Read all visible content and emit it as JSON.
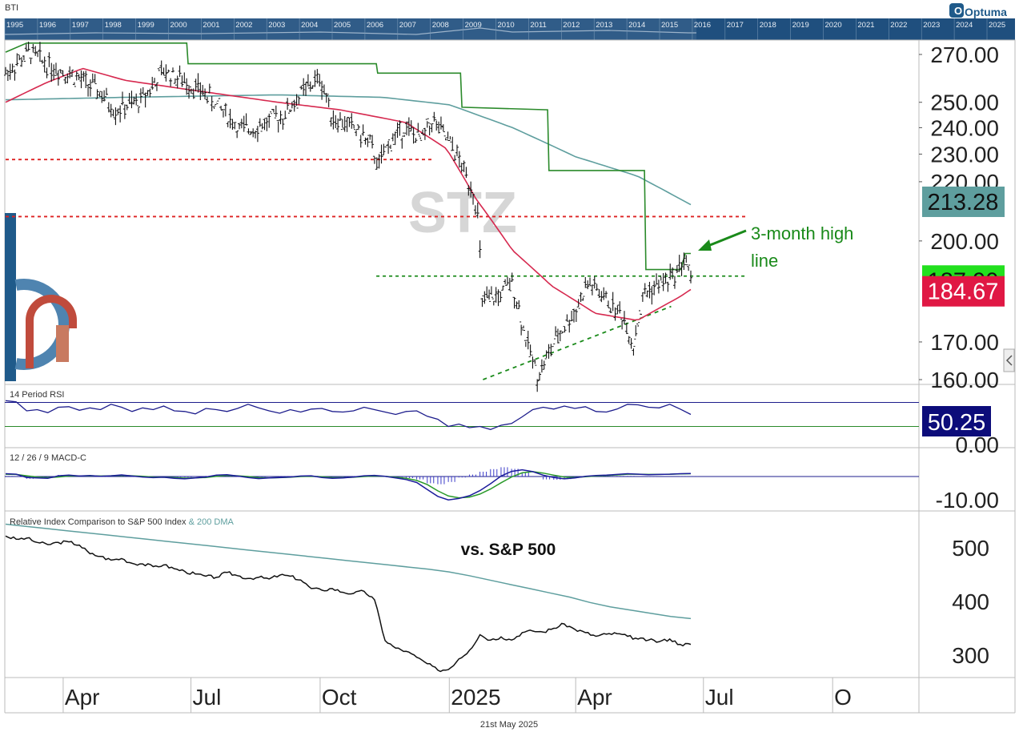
{
  "ticker_code": "BTI",
  "watermark": "STZ",
  "brand": "Optuma",
  "date_footer": "21st May 2025",
  "timeline_years": [
    "1995",
    "1996",
    "1997",
    "1998",
    "1999",
    "2000",
    "2001",
    "2002",
    "2003",
    "2004",
    "2005",
    "2006",
    "2007",
    "2008",
    "2009",
    "2010",
    "2011",
    "2012",
    "2013",
    "2014",
    "2015",
    "2016",
    "2017",
    "2018",
    "2019",
    "2020",
    "2021",
    "2022",
    "2023",
    "2024",
    "2025"
  ],
  "annotation": {
    "line1": "3-month high",
    "line2": "line"
  },
  "x_ticks": [
    "Apr",
    "Jul",
    "Oct",
    "2025",
    "Apr",
    "Jul",
    "O"
  ],
  "colors": {
    "bar": "#111111",
    "ma50": "#d6294f",
    "ma200": "#5e9e9e",
    "high_line": "#2a8a2a",
    "support": "#1a8a1a",
    "resistance": "#dd2222",
    "rsi": "#1c1c8c",
    "macd": "#1c1c9c",
    "signal": "#2a9a2a",
    "histogram": "#3a3ac8",
    "relative": "#111111",
    "rel_ma": "#5e9e9e",
    "brand_blue": "#1f5a8a"
  },
  "chart_data": [
    {
      "type": "candlestick",
      "title": "",
      "y_ticks": [
        "270.00",
        "250.00",
        "240.00",
        "230.00",
        "220.00",
        "200.00",
        "170.00",
        "160.00"
      ],
      "ylim": [
        160,
        276
      ],
      "y_scale": "log",
      "price_labels": [
        {
          "label": "213.28",
          "value": 213.28,
          "color": "#5e9e9e",
          "text_color": "#111111"
        },
        {
          "label": "187.90",
          "value": 187.9,
          "color": "#22e01e",
          "text_color": "#111111"
        },
        {
          "label": "184.67",
          "value": 184.67,
          "color": "#e01844",
          "text_color": "#ffffff"
        }
      ],
      "horizontal_levels": [
        {
          "name": "",
          "value": 228,
          "from": "2024-02-20",
          "to": "2024-12-20",
          "color": "#dd2222",
          "style": "dotted"
        },
        {
          "name": "",
          "value": 208,
          "from": "2024-02-20",
          "to": "2025-07-31",
          "color": "#dd2222",
          "style": "dotted"
        },
        {
          "name": "",
          "value": 189,
          "from": "2024-11-10",
          "to": "2025-07-31",
          "color": "#1a8a1a",
          "style": "dotted"
        }
      ],
      "trendline": {
        "from": [
          "2025-01-25",
          160
        ],
        "to": [
          "2025-06-08",
          180
        ],
        "color": "#1a8a1a",
        "style": "dotted"
      },
      "series_anchor": {
        "price": [
          [
            "2024-02-20",
            262
          ],
          [
            "2024-03-08",
            271
          ],
          [
            "2024-03-20",
            266
          ],
          [
            "2024-04-05",
            262
          ],
          [
            "2024-04-25",
            255
          ],
          [
            "2024-05-08",
            247
          ],
          [
            "2024-05-25",
            250
          ],
          [
            "2024-06-12",
            263
          ],
          [
            "2024-06-28",
            258
          ],
          [
            "2024-07-10",
            254
          ],
          [
            "2024-07-25",
            246
          ],
          [
            "2024-08-05",
            239
          ],
          [
            "2024-08-20",
            241
          ],
          [
            "2024-09-05",
            245
          ],
          [
            "2024-09-20",
            255
          ],
          [
            "2024-10-01",
            260
          ],
          [
            "2024-10-10",
            244
          ],
          [
            "2024-10-25",
            240
          ],
          [
            "2024-11-05",
            234
          ],
          [
            "2024-11-12",
            226
          ],
          [
            "2024-11-20",
            235
          ],
          [
            "2024-12-01",
            240
          ],
          [
            "2024-12-12",
            235
          ],
          [
            "2024-12-20",
            243
          ],
          [
            "2025-01-05",
            231
          ],
          [
            "2025-01-13",
            222
          ],
          [
            "2025-01-18",
            217
          ],
          [
            "2025-01-22",
            206
          ],
          [
            "2025-01-24",
            181
          ],
          [
            "2025-02-05",
            183
          ],
          [
            "2025-02-15",
            187
          ],
          [
            "2025-02-25",
            170
          ],
          [
            "2025-03-05",
            161
          ],
          [
            "2025-03-20",
            172
          ],
          [
            "2025-04-01",
            179
          ],
          [
            "2025-04-10",
            187
          ],
          [
            "2025-04-25",
            181
          ],
          [
            "2025-05-05",
            177
          ],
          [
            "2025-05-12",
            169
          ],
          [
            "2025-05-20",
            184
          ],
          [
            "2025-06-01",
            187
          ],
          [
            "2025-06-10",
            189
          ],
          [
            "2025-06-18",
            195
          ],
          [
            "2025-06-22",
            187
          ]
        ],
        "ma50": [
          [
            "2024-02-20",
            250
          ],
          [
            "2024-03-20",
            258
          ],
          [
            "2024-04-15",
            264
          ],
          [
            "2024-05-15",
            259
          ],
          [
            "2024-07-01",
            255
          ],
          [
            "2024-09-01",
            250
          ],
          [
            "2024-10-15",
            247
          ],
          [
            "2024-12-01",
            242
          ],
          [
            "2024-12-30",
            232
          ],
          [
            "2025-01-20",
            214
          ],
          [
            "2025-02-15",
            197
          ],
          [
            "2025-03-15",
            186
          ],
          [
            "2025-04-15",
            178
          ],
          [
            "2025-05-15",
            176
          ],
          [
            "2025-06-15",
            183
          ],
          [
            "2025-06-22",
            185
          ]
        ],
        "ma200": [
          [
            "2024-02-20",
            251
          ],
          [
            "2024-05-15",
            252
          ],
          [
            "2024-09-01",
            253
          ],
          [
            "2024-11-15",
            252
          ],
          [
            "2025-01-01",
            249
          ],
          [
            "2025-02-15",
            240
          ],
          [
            "2025-04-01",
            229
          ],
          [
            "2025-05-15",
            222
          ],
          [
            "2025-06-22",
            212
          ]
        ],
        "high_line": [
          [
            "2024-02-20",
            271
          ],
          [
            "2024-03-06",
            275
          ],
          [
            "2024-06-28",
            275
          ],
          [
            "2024-06-29",
            266
          ],
          [
            "2024-11-10",
            266
          ],
          [
            "2024-11-11",
            262
          ],
          [
            "2025-01-09",
            262
          ],
          [
            "2025-01-10",
            248
          ],
          [
            "2025-03-12",
            247
          ],
          [
            "2025-03-13",
            224
          ],
          [
            "2025-05-20",
            224
          ],
          [
            "2025-05-21",
            191
          ],
          [
            "2025-06-15",
            191
          ],
          [
            "2025-06-18",
            196
          ],
          [
            "2025-06-22",
            196
          ]
        ]
      }
    },
    {
      "type": "line",
      "title": "14 Period RSI",
      "y_ticks": [
        "0.00"
      ],
      "overbought": 70,
      "oversold": 30,
      "value_label": "50.25",
      "ylim": [
        0,
        100
      ],
      "series": [
        {
          "name": "",
          "values": [
            73,
            71,
            56,
            58,
            53,
            62,
            63,
            57,
            61,
            58,
            67,
            62,
            55,
            61,
            58,
            64,
            56,
            55,
            51,
            60,
            58,
            55,
            60,
            67,
            61,
            56,
            52,
            58,
            54,
            59,
            60,
            55,
            54,
            56,
            62,
            58,
            54,
            50,
            55,
            56,
            47,
            42,
            30,
            34,
            28,
            30,
            25,
            32,
            35,
            46,
            58,
            62,
            59,
            64,
            60,
            63,
            55,
            54,
            59,
            67,
            66,
            62,
            61,
            67,
            59,
            50
          ]
        }
      ]
    },
    {
      "type": "line",
      "title": "12 / 26 / 9 MACD-C",
      "y_ticks": [
        "-10.00"
      ],
      "ylim": [
        -12,
        3
      ],
      "series": [
        {
          "name": "",
          "values": [
            1.2,
            1.0,
            -0.4,
            -0.6,
            -0.8,
            0.3,
            0.6,
            0.2,
            0.4,
            0.1,
            0.3,
            0.7,
            0.2,
            -0.2,
            -0.5,
            -0.3,
            -0.8,
            -1.0,
            -0.6,
            -0.2,
            0.6,
            0.8,
            0.2,
            -0.4,
            -0.9,
            -0.6,
            -0.4,
            -0.2,
            0.2,
            0.3,
            -0.4,
            -0.8,
            -0.6,
            -0.2,
            0.3,
            0.5,
            0.1,
            -0.6,
            -1.3,
            -2.6,
            -5.6,
            -8.6,
            -10.1,
            -9.5,
            -8.3,
            -6.1,
            -3.1,
            0.2,
            2.2,
            2.9,
            2.1,
            0.6,
            -0.4,
            -1.0,
            -0.6,
            0.1,
            0.4,
            0.6,
            0.9,
            1.2,
            1.0,
            0.8,
            0.9,
            1.0,
            1.2,
            1.3
          ]
        },
        {
          "name": "",
          "values": [
            1.0,
            0.9,
            0.3,
            -0.2,
            -0.5,
            -0.2,
            0.2,
            0.2,
            0.3,
            0.2,
            0.3,
            0.5,
            0.3,
            0.1,
            -0.2,
            -0.3,
            -0.5,
            -0.7,
            -0.6,
            -0.4,
            0.1,
            0.4,
            0.3,
            0.0,
            -0.5,
            -0.6,
            -0.5,
            -0.3,
            0.0,
            0.1,
            -0.1,
            -0.4,
            -0.5,
            -0.3,
            0.0,
            0.2,
            0.1,
            -0.3,
            -0.8,
            -1.7,
            -3.5,
            -6.2,
            -8.4,
            -9.2,
            -8.9,
            -7.6,
            -5.4,
            -2.7,
            -0.2,
            1.6,
            2.1,
            1.5,
            0.6,
            -0.2,
            -0.4,
            -0.1,
            0.2,
            0.4,
            0.7,
            1.0,
            1.0,
            0.9,
            0.9,
            1.0,
            1.1,
            1.2
          ]
        }
      ]
    },
    {
      "type": "line",
      "title": "Relative Index Comparison to S&P 500 Index",
      "title_suffix": "& 200 DMA",
      "annotation": "vs. S&P 500",
      "y_ticks": [
        "500",
        "400",
        "300"
      ],
      "ylim": [
        262,
        548
      ],
      "series": [
        {
          "name": "",
          "values": [
            522,
            516,
            518,
            510,
            506,
            510,
            511,
            505,
            489,
            484,
            477,
            480,
            471,
            470,
            465,
            468,
            461,
            456,
            451,
            447,
            445,
            454,
            448,
            443,
            445,
            442,
            449,
            447,
            440,
            424,
            421,
            424,
            417,
            415,
            419,
            403,
            327,
            313,
            307,
            296,
            284,
            272,
            273,
            293,
            309,
            338,
            328,
            334,
            328,
            342,
            345,
            343,
            350,
            358,
            348,
            342,
            335,
            339,
            340,
            335,
            330,
            328,
            325,
            330,
            320,
            320
          ]
        },
        {
          "name": "",
          "values": [
            544,
            540,
            536,
            532,
            528,
            524,
            520,
            516,
            512,
            508,
            504,
            500,
            496,
            492,
            488,
            484,
            480,
            476,
            472,
            468,
            464,
            460,
            455,
            448,
            440,
            432,
            424,
            416,
            408,
            398,
            390,
            384,
            378,
            372,
            368
          ]
        }
      ]
    }
  ]
}
